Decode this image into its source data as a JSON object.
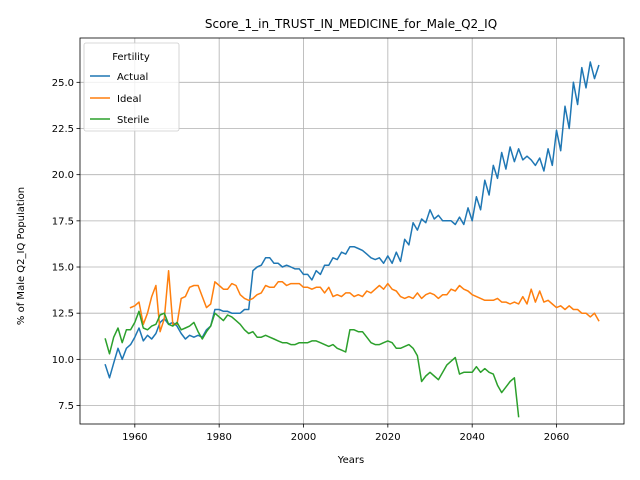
{
  "chart_data": {
    "type": "line",
    "title": "Score_1_in_TRUST_IN_MEDICINE_for_Male_Q2_IQ",
    "xlabel": "Years",
    "ylabel": "% of Male Q2_IQ Population",
    "xlim": [
      1947,
      2076
    ],
    "ylim": [
      6.5,
      27.4
    ],
    "xticks": [
      1960,
      1980,
      2000,
      2020,
      2040,
      2060
    ],
    "xtick_labels": [
      "1960",
      "1980",
      "2000",
      "2020",
      "2040",
      "2060"
    ],
    "yticks": [
      7.5,
      10.0,
      12.5,
      15.0,
      17.5,
      20.0,
      22.5,
      25.0
    ],
    "ytick_labels": [
      "7.5",
      "10.0",
      "12.5",
      "15.0",
      "17.5",
      "20.0",
      "22.5",
      "25.0"
    ],
    "grid": true,
    "legend": {
      "title": "Fertility",
      "position": "upper-left"
    },
    "series": [
      {
        "name": "Actual",
        "color": "#1f77b4",
        "x": [
          1953,
          1954,
          1955,
          1956,
          1957,
          1958,
          1959,
          1960,
          1961,
          1962,
          1963,
          1964,
          1965,
          1966,
          1967,
          1968,
          1969,
          1970,
          1971,
          1972,
          1973,
          1974,
          1975,
          1976,
          1977,
          1978,
          1979,
          1980,
          1981,
          1982,
          1983,
          1984,
          1985,
          1986,
          1987,
          1988,
          1989,
          1990,
          1991,
          1992,
          1993,
          1994,
          1995,
          1996,
          1997,
          1998,
          1999,
          2000,
          2001,
          2002,
          2003,
          2004,
          2005,
          2006,
          2007,
          2008,
          2009,
          2010,
          2011,
          2012,
          2013,
          2014,
          2015,
          2016,
          2017,
          2018,
          2019,
          2020,
          2021,
          2022,
          2023,
          2024,
          2025,
          2026,
          2027,
          2028,
          2029,
          2030,
          2031,
          2032,
          2033,
          2034,
          2035,
          2036,
          2037,
          2038,
          2039,
          2040,
          2041,
          2042,
          2043,
          2044,
          2045,
          2046,
          2047,
          2048,
          2049,
          2050,
          2051,
          2052,
          2053,
          2054,
          2055,
          2056,
          2057,
          2058,
          2059,
          2060,
          2061,
          2062,
          2063,
          2064,
          2065,
          2066,
          2067,
          2068,
          2069,
          2070
        ],
        "y": [
          9.7,
          9.0,
          9.8,
          10.6,
          10.0,
          10.6,
          10.8,
          11.2,
          11.7,
          11.0,
          11.3,
          11.1,
          11.4,
          12.0,
          12.2,
          11.9,
          12.0,
          11.8,
          11.4,
          11.1,
          11.3,
          11.2,
          11.3,
          11.2,
          11.6,
          11.8,
          12.7,
          12.7,
          12.6,
          12.6,
          12.5,
          12.5,
          12.5,
          12.7,
          12.7,
          14.8,
          15.0,
          15.1,
          15.5,
          15.5,
          15.2,
          15.2,
          15.0,
          15.1,
          15.0,
          14.9,
          14.9,
          14.6,
          14.6,
          14.3,
          14.8,
          14.6,
          15.1,
          15.1,
          15.5,
          15.4,
          15.8,
          15.7,
          16.1,
          16.1,
          16.0,
          15.9,
          15.7,
          15.5,
          15.4,
          15.5,
          15.2,
          15.6,
          15.2,
          15.8,
          15.3,
          16.5,
          16.2,
          17.4,
          17.0,
          17.6,
          17.4,
          18.1,
          17.6,
          17.8,
          17.5,
          17.5,
          17.5,
          17.3,
          17.7,
          17.3,
          18.2,
          17.5,
          18.8,
          18.1,
          19.7,
          18.9,
          20.5,
          19.8,
          21.2,
          20.3,
          21.5,
          20.7,
          21.4,
          20.8,
          21.0,
          20.8,
          20.5,
          20.9,
          20.2,
          21.4,
          20.5,
          22.4,
          21.3,
          23.7,
          22.5,
          25.0,
          23.8,
          25.8,
          24.7,
          26.1,
          25.2,
          25.9
        ]
      },
      {
        "name": "Ideal",
        "color": "#ff7f0e",
        "x": [
          1959,
          1960,
          1961,
          1962,
          1963,
          1964,
          1965,
          1966,
          1967,
          1968,
          1969,
          1970,
          1971,
          1972,
          1973,
          1974,
          1975,
          1976,
          1977,
          1978,
          1979,
          1980,
          1981,
          1982,
          1983,
          1984,
          1985,
          1986,
          1987,
          1988,
          1989,
          1990,
          1991,
          1992,
          1993,
          1994,
          1995,
          1996,
          1997,
          1998,
          1999,
          2000,
          2001,
          2002,
          2003,
          2004,
          2005,
          2006,
          2007,
          2008,
          2009,
          2010,
          2011,
          2012,
          2013,
          2014,
          2015,
          2016,
          2017,
          2018,
          2019,
          2020,
          2021,
          2022,
          2023,
          2024,
          2025,
          2026,
          2027,
          2028,
          2029,
          2030,
          2031,
          2032,
          2033,
          2034,
          2035,
          2036,
          2037,
          2038,
          2039,
          2040,
          2041,
          2042,
          2043,
          2044,
          2045,
          2046,
          2047,
          2048,
          2049,
          2050,
          2051,
          2052,
          2053,
          2054,
          2055,
          2056,
          2057,
          2058,
          2059,
          2060,
          2061,
          2062,
          2063,
          2064,
          2065,
          2066,
          2067,
          2068,
          2069,
          2070
        ],
        "y": [
          12.8,
          12.9,
          13.1,
          11.9,
          12.5,
          13.4,
          14.0,
          11.5,
          12.2,
          14.8,
          11.9,
          11.9,
          13.3,
          13.4,
          13.9,
          14.0,
          14.0,
          13.4,
          12.8,
          13.0,
          14.2,
          14.0,
          13.8,
          13.8,
          14.1,
          14.0,
          13.5,
          13.3,
          13.2,
          13.3,
          13.5,
          13.6,
          14.0,
          13.9,
          13.9,
          14.2,
          14.2,
          14.0,
          14.1,
          14.1,
          14.1,
          13.9,
          13.9,
          13.8,
          13.9,
          13.9,
          13.6,
          13.9,
          13.4,
          13.5,
          13.4,
          13.6,
          13.6,
          13.4,
          13.5,
          13.4,
          13.7,
          13.6,
          13.8,
          14.0,
          13.8,
          14.1,
          13.8,
          13.7,
          13.4,
          13.3,
          13.4,
          13.3,
          13.6,
          13.3,
          13.5,
          13.6,
          13.5,
          13.3,
          13.5,
          13.5,
          13.8,
          13.7,
          14.0,
          13.8,
          13.7,
          13.5,
          13.4,
          13.3,
          13.2,
          13.2,
          13.2,
          13.3,
          13.1,
          13.1,
          13.0,
          13.1,
          13.0,
          13.4,
          13.0,
          13.8,
          13.1,
          13.7,
          13.1,
          13.2,
          13.0,
          12.8,
          12.9,
          12.7,
          12.9,
          12.7,
          12.7,
          12.5,
          12.5,
          12.3,
          12.5,
          12.1
        ]
      },
      {
        "name": "Sterile",
        "color": "#2ca02c",
        "x": [
          1953,
          1954,
          1955,
          1956,
          1957,
          1958,
          1959,
          1960,
          1961,
          1962,
          1963,
          1964,
          1965,
          1966,
          1967,
          1968,
          1969,
          1970,
          1971,
          1972,
          1973,
          1974,
          1975,
          1976,
          1977,
          1978,
          1979,
          1980,
          1981,
          1982,
          1983,
          1984,
          1985,
          1986,
          1987,
          1988,
          1989,
          1990,
          1991,
          1992,
          1993,
          1994,
          1995,
          1996,
          1997,
          1998,
          1999,
          2000,
          2001,
          2002,
          2003,
          2004,
          2005,
          2006,
          2007,
          2008,
          2009,
          2010,
          2011,
          2012,
          2013,
          2014,
          2015,
          2016,
          2017,
          2018,
          2019,
          2020,
          2021,
          2022,
          2023,
          2024,
          2025,
          2026,
          2027,
          2028,
          2029,
          2030,
          2031,
          2032,
          2033,
          2034,
          2035,
          2036,
          2037,
          2038,
          2039,
          2040,
          2041,
          2042,
          2043,
          2044,
          2045,
          2046,
          2047,
          2048,
          2049,
          2050,
          2051
        ],
        "y": [
          11.1,
          10.3,
          11.2,
          11.7,
          10.9,
          11.6,
          11.6,
          12.0,
          12.6,
          11.7,
          11.6,
          11.8,
          11.9,
          12.4,
          12.5,
          11.9,
          11.8,
          12.0,
          11.6,
          11.7,
          11.8,
          12.0,
          11.5,
          11.1,
          11.5,
          11.8,
          12.5,
          12.3,
          12.1,
          12.4,
          12.3,
          12.1,
          11.9,
          11.6,
          11.4,
          11.5,
          11.2,
          11.2,
          11.3,
          11.2,
          11.1,
          11.0,
          10.9,
          10.9,
          10.8,
          10.8,
          10.9,
          10.9,
          10.9,
          11.0,
          11.0,
          10.9,
          10.8,
          10.7,
          10.8,
          10.6,
          10.5,
          10.4,
          11.6,
          11.6,
          11.5,
          11.5,
          11.2,
          10.9,
          10.8,
          10.8,
          10.9,
          11.0,
          10.9,
          10.6,
          10.6,
          10.7,
          10.8,
          10.6,
          10.2,
          8.8,
          9.1,
          9.3,
          9.1,
          8.9,
          9.3,
          9.7,
          9.9,
          10.1,
          9.2,
          9.3,
          9.3,
          9.3,
          9.6,
          9.3,
          9.5,
          9.3,
          9.2,
          8.6,
          8.2,
          8.5,
          8.8,
          9.0,
          6.9
        ]
      }
    ]
  }
}
